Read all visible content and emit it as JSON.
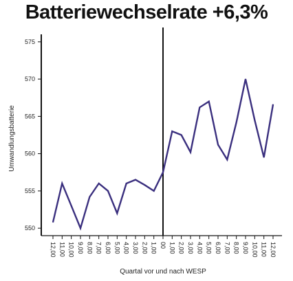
{
  "chart_data": {
    "type": "line",
    "title": "Batteriewechselrate +6,3%",
    "xlabel": "Quartal vor und nach WESP",
    "ylabel": "Umwandlungsbatterie",
    "categories": [
      "12,00",
      "11,00",
      "10,00",
      "9,00",
      "8,00",
      "7,00",
      "6,00",
      "5,00",
      "4,00",
      "3,00",
      "2,00",
      "1,00",
      "00",
      "1,00",
      "2,00",
      "3,00",
      "4,00",
      "5,00",
      "6,00",
      "7,00",
      "8,00",
      "9,00",
      "10,00",
      "11,00",
      "12,00"
    ],
    "yticks": [
      550,
      555,
      560,
      565,
      570,
      575
    ],
    "ylim": [
      549,
      576
    ],
    "divider_category_index": 12,
    "series": [
      {
        "values": [
          550.8,
          556.0,
          553.0,
          550.0,
          554.2,
          556.0,
          555.0,
          552.0,
          556.0,
          556.5,
          555.8,
          555.0,
          557.5,
          563.0,
          562.5,
          560.2,
          566.2,
          567.0,
          561.2,
          559.2,
          564.2,
          570.0,
          564.5,
          559.5,
          566.6
        ],
        "color": "#3a2f7e"
      }
    ]
  }
}
